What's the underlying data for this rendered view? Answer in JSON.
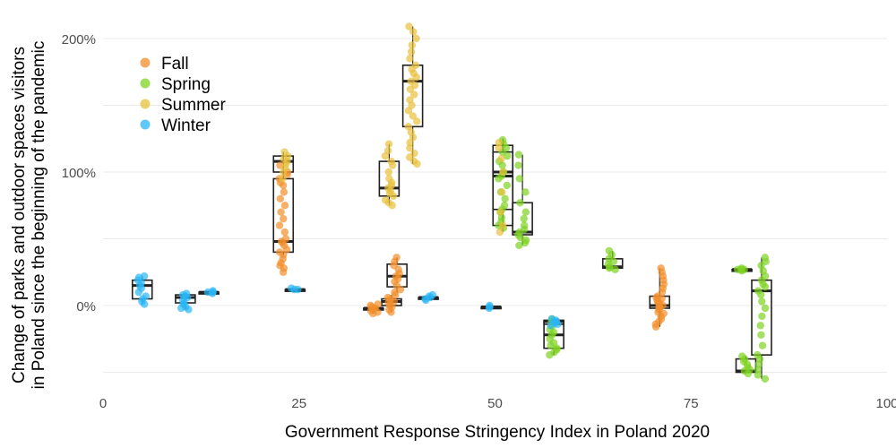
{
  "chart_data": {
    "type": "scatter",
    "subtype": "jittered points with boxplots",
    "xlabel": "Government Response Stringency Index in Poland 2020",
    "ylabel_lines": [
      "Change of parks and outdoor spaces visitors",
      "in Poland since the beginning of the pandemic"
    ],
    "xlim": [
      0,
      100
    ],
    "ylim": [
      -50,
      210
    ],
    "x_ticks": [
      0,
      25,
      50,
      75,
      100
    ],
    "y_ticks": [
      0,
      100,
      200
    ],
    "y_tick_labels": [
      "0%",
      "100%",
      "200%"
    ],
    "grid": true,
    "legend_position": "top-left",
    "series": [
      {
        "name": "Fall",
        "color": "#F28E2B",
        "groups": [
          {
            "x": 23,
            "box": [
              38,
              40,
              48,
              95,
              113
            ],
            "points": [
              25,
              28,
              30,
              32,
              35,
              38,
              40,
              42,
              45,
              47,
              48,
              50,
              55,
              60,
              65,
              70,
              75,
              80,
              85,
              90,
              92,
              95,
              98,
              100,
              105
            ]
          },
          {
            "x": 34.5,
            "box": [
              -6,
              -3,
              -2,
              -2,
              0
            ],
            "points": [
              -6,
              -5,
              -4,
              -3,
              -2,
              -2,
              -1,
              0,
              1
            ]
          },
          {
            "x": 36.8,
            "box": [
              -5,
              0,
              3,
              5,
              8
            ],
            "points": [
              -5,
              -3,
              -1,
              0,
              2,
              3,
              4,
              5,
              6,
              8
            ]
          },
          {
            "x": 37.5,
            "box": [
              10,
              14,
              22,
              31,
              36
            ],
            "points": [
              10,
              12,
              15,
              18,
              20,
              22,
              24,
              27,
              30,
              33,
              36
            ]
          },
          {
            "x": 71,
            "box": [
              -16,
              -2,
              0,
              7,
              28
            ],
            "points": [
              -16,
              -14,
              -12,
              -10,
              -8,
              -6,
              -5,
              -3,
              -2,
              -1,
              0,
              1,
              2,
              3,
              4,
              5,
              6,
              7,
              10,
              13,
              16,
              19,
              22,
              25,
              28
            ]
          }
        ]
      },
      {
        "name": "Spring",
        "color": "#7ED321",
        "groups": [
          {
            "x": 51,
            "box": [
              58,
              72,
              97,
              115,
              125
            ],
            "points": [
              58,
              60,
              63,
              66,
              70,
              72,
              75,
              80,
              85,
              90,
              95,
              97,
              100,
              105,
              108,
              112,
              115,
              118,
              121,
              124
            ]
          },
          {
            "x": 53.5,
            "box": [
              45,
              53,
              55,
              77,
              113
            ],
            "points": [
              45,
              47,
              49,
              51,
              53,
              55,
              57,
              60,
              65,
              70,
              77,
              85,
              95,
              105,
              113
            ]
          },
          {
            "x": 57.5,
            "box": [
              -37,
              -32,
              -22,
              -12,
              -10
            ],
            "points": [
              -37,
              -35,
              -33,
              -32,
              -30,
              -28,
              -25,
              -22,
              -20,
              -18,
              -15,
              -12,
              -10
            ]
          },
          {
            "x": 65,
            "box": [
              27,
              28,
              29,
              35,
              41
            ],
            "points": [
              27,
              28,
              29,
              31,
              33,
              35,
              38,
              41
            ]
          },
          {
            "x": 81.5,
            "box": [
              26,
              27,
              27,
              27,
              28
            ],
            "points": [
              26,
              27,
              27,
              27,
              28
            ]
          },
          {
            "x": 82,
            "box": [
              -51,
              -50,
              -49,
              -40,
              -38
            ],
            "points": [
              -51,
              -49,
              -48,
              -46,
              -44,
              -42,
              -40,
              -38
            ]
          },
          {
            "x": 84,
            "box": [
              -55,
              -37,
              11,
              19,
              36
            ],
            "points": [
              -55,
              -52,
              -48,
              -44,
              -40,
              -37,
              -30,
              -22,
              -15,
              -8,
              -2,
              3,
              8,
              11,
              14,
              16,
              19,
              22,
              26,
              30,
              33,
              36
            ]
          }
        ]
      },
      {
        "name": "Summer",
        "color": "#E8C13C",
        "groups": [
          {
            "x": 23,
            "box": [
              95,
              100,
              108,
              112,
              115
            ],
            "points": [
              95,
              100,
              103,
              106,
              108,
              110,
              112,
              115
            ]
          },
          {
            "x": 36.5,
            "box": [
              75,
              82,
              88,
              108,
              121
            ],
            "points": [
              75,
              77,
              79,
              82,
              84,
              86,
              88,
              90,
              92,
              95,
              100,
              105,
              108,
              112,
              116,
              121
            ]
          },
          {
            "x": 39.5,
            "box": [
              106,
              134,
              168,
              180,
              209
            ],
            "points": [
              106,
              108,
              111,
              114,
              118,
              122,
              126,
              130,
              134,
              138,
              142,
              146,
              150,
              154,
              158,
              162,
              165,
              168,
              171,
              174,
              177,
              180,
              185,
              190,
              195,
              200,
              205,
              209
            ]
          },
          {
            "x": 51,
            "box": [
              55,
              60,
              100,
              120,
              122
            ],
            "points": [
              55,
              60,
              70,
              85,
              100,
              110,
              118,
              122
            ]
          }
        ]
      },
      {
        "name": "Winter",
        "color": "#29B6F6",
        "groups": [
          {
            "x": 5,
            "box": [
              1,
              5,
              15,
              19,
              22
            ],
            "points": [
              1,
              3,
              5,
              7,
              10,
              13,
              15,
              17,
              19,
              21,
              22
            ]
          },
          {
            "x": 10.5,
            "box": [
              -3,
              2,
              6,
              8,
              9
            ],
            "points": [
              -3,
              -2,
              -1,
              1,
              2,
              4,
              6,
              7,
              8,
              9
            ]
          },
          {
            "x": 13.5,
            "box": [
              9,
              10,
              10,
              10,
              11
            ],
            "points": [
              9,
              10,
              10,
              11
            ]
          },
          {
            "x": 24.5,
            "box": [
              12,
              12,
              12,
              12,
              13
            ],
            "points": [
              12,
              12,
              13
            ]
          },
          {
            "x": 41.5,
            "box": [
              4,
              5,
              6,
              6,
              8
            ],
            "points": [
              4,
              5,
              6,
              7,
              8
            ]
          },
          {
            "x": 49.5,
            "box": [
              -2,
              -1,
              -1,
              -1,
              0
            ],
            "points": [
              -2,
              -1,
              0
            ]
          },
          {
            "x": 57.5,
            "box": [
              -15,
              -14,
              -12,
              -11,
              -10
            ],
            "points": [
              -15,
              -14,
              -13,
              -12,
              -11,
              -10
            ]
          }
        ]
      }
    ]
  }
}
